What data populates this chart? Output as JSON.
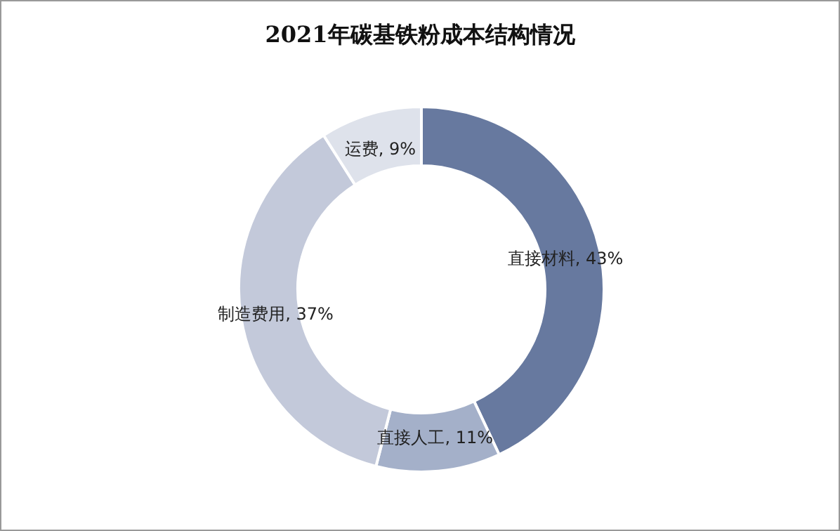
{
  "chart_data": {
    "type": "donut",
    "title": "2021年碳基铁粉成本结构情况",
    "categories": [
      "直接材料",
      "直接人工",
      "制造费用",
      "运费"
    ],
    "values": [
      43,
      11,
      37,
      9
    ],
    "colors": [
      "#67799f",
      "#a4b0c9",
      "#c3c9da",
      "#dee2eb"
    ],
    "value_labels": [
      "43%",
      "11%",
      "37%",
      "9%"
    ],
    "legend": false
  }
}
